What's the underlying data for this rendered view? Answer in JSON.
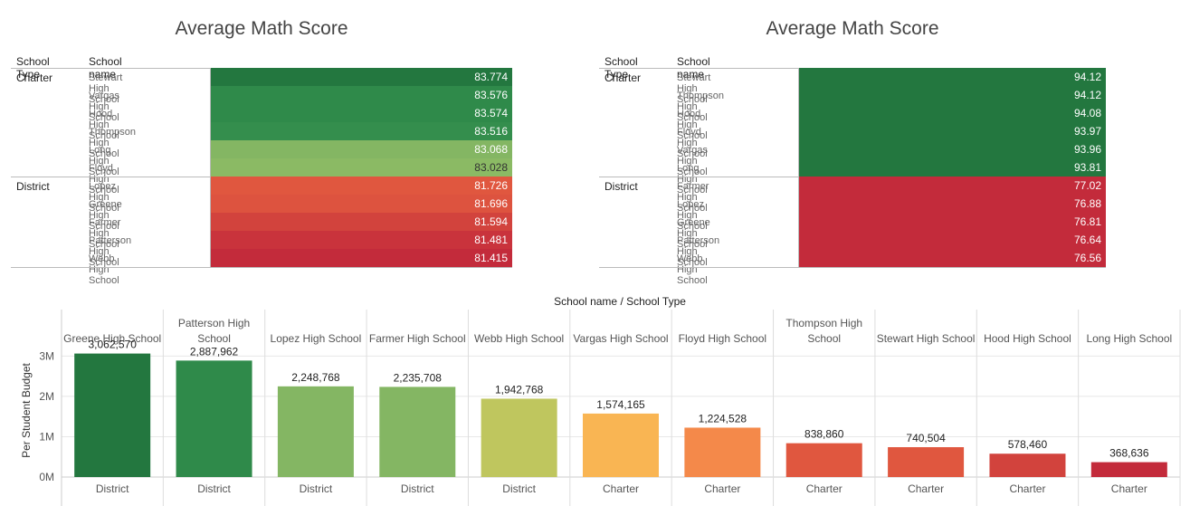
{
  "chart_data": [
    {
      "type": "table",
      "title": "Average Math Score",
      "column_headers": [
        "School Type",
        "School name"
      ],
      "groups": [
        {
          "type": "Charter",
          "rows": [
            {
              "name": "Stewart High School",
              "value": "83.774",
              "color": "#23773F",
              "text_color": "#ffffff"
            },
            {
              "name": "Vargas High School",
              "value": "83.576",
              "color": "#2F8A4A",
              "text_color": "#ffffff"
            },
            {
              "name": "Hood High School",
              "value": "83.574",
              "color": "#2F8A4A",
              "text_color": "#ffffff"
            },
            {
              "name": "Thompson High School",
              "value": "83.516",
              "color": "#348E4D",
              "text_color": "#ffffff"
            },
            {
              "name": "Long High School",
              "value": "83.068",
              "color": "#84B663",
              "text_color": "#ffffff"
            },
            {
              "name": "Floyd High School",
              "value": "83.028",
              "color": "#8BBA64",
              "text_color": "#333333"
            }
          ]
        },
        {
          "type": "District",
          "rows": [
            {
              "name": "Lopez High School",
              "value": "81.726",
              "color": "#E0573F",
              "text_color": "#ffffff"
            },
            {
              "name": "Greene High School",
              "value": "81.696",
              "color": "#DD533F",
              "text_color": "#ffffff"
            },
            {
              "name": "Farmer High School",
              "value": "81.594",
              "color": "#D2433D",
              "text_color": "#ffffff"
            },
            {
              "name": "Patterson High School",
              "value": "81.481",
              "color": "#C9333C",
              "text_color": "#ffffff"
            },
            {
              "name": "Webb High School",
              "value": "81.415",
              "color": "#C32B3B",
              "text_color": "#ffffff"
            }
          ]
        }
      ]
    },
    {
      "type": "table",
      "title": "Average Math Score",
      "column_headers": [
        "School Type",
        "School name"
      ],
      "groups": [
        {
          "type": "Charter",
          "rows": [
            {
              "name": "Stewart High School",
              "value": "94.12",
              "color": "#23773F",
              "text_color": "#ffffff"
            },
            {
              "name": "Thompson High School",
              "value": "94.12",
              "color": "#23773F",
              "text_color": "#ffffff"
            },
            {
              "name": "Hood High School",
              "value": "94.08",
              "color": "#23773F",
              "text_color": "#ffffff"
            },
            {
              "name": "Floyd High School",
              "value": "93.97",
              "color": "#23773F",
              "text_color": "#ffffff"
            },
            {
              "name": "Vargas High School",
              "value": "93.96",
              "color": "#23773F",
              "text_color": "#ffffff"
            },
            {
              "name": "Long High School",
              "value": "93.81",
              "color": "#23773F",
              "text_color": "#ffffff"
            }
          ]
        },
        {
          "type": "District",
          "rows": [
            {
              "name": "Farmer High School",
              "value": "77.02",
              "color": "#C32B3B",
              "text_color": "#ffffff"
            },
            {
              "name": "Lopez High School",
              "value": "76.88",
              "color": "#C32B3B",
              "text_color": "#ffffff"
            },
            {
              "name": "Greene High School",
              "value": "76.81",
              "color": "#C32B3B",
              "text_color": "#ffffff"
            },
            {
              "name": "Patterson High School",
              "value": "76.64",
              "color": "#C32B3B",
              "text_color": "#ffffff"
            },
            {
              "name": "Webb High School",
              "value": "76.56",
              "color": "#C32B3B",
              "text_color": "#ffffff"
            }
          ]
        }
      ]
    },
    {
      "type": "bar",
      "header": "School name / School Type",
      "ylabel": "Per Student Budget",
      "ylim": [
        0,
        3300000
      ],
      "yticks": [
        {
          "value": 0,
          "label": "0M"
        },
        {
          "value": 1000000,
          "label": "1M"
        },
        {
          "value": 2000000,
          "label": "2M"
        },
        {
          "value": 3000000,
          "label": "3M"
        }
      ],
      "grid": true,
      "bars": [
        {
          "school": "Greene High School",
          "type": "District",
          "value": 3062570,
          "label": "3,062,570",
          "color": "#23773F"
        },
        {
          "school": "Patterson High School",
          "type": "District",
          "value": 2887962,
          "label": "2,887,962",
          "color": "#2F8A4A"
        },
        {
          "school": "Lopez High School",
          "type": "District",
          "value": 2248768,
          "label": "2,248,768",
          "color": "#84B663"
        },
        {
          "school": "Farmer High School",
          "type": "District",
          "value": 2235708,
          "label": "2,235,708",
          "color": "#84B663"
        },
        {
          "school": "Webb High School",
          "type": "District",
          "value": 1942768,
          "label": "1,942,768",
          "color": "#BFC65E"
        },
        {
          "school": "Vargas High School",
          "type": "Charter",
          "value": 1574165,
          "label": "1,574,165",
          "color": "#F9B553"
        },
        {
          "school": "Floyd High School",
          "type": "Charter",
          "value": 1224528,
          "label": "1,224,528",
          "color": "#F4894A"
        },
        {
          "school": "Thompson High School",
          "type": "Charter",
          "value": 838860,
          "label": "838,860",
          "color": "#E0573F"
        },
        {
          "school": "Stewart High School",
          "type": "Charter",
          "value": 740504,
          "label": "740,504",
          "color": "#E0573F"
        },
        {
          "school": "Hood High School",
          "type": "Charter",
          "value": 578460,
          "label": "578,460",
          "color": "#D2433D"
        },
        {
          "school": "Long High School",
          "type": "Charter",
          "value": 368636,
          "label": "368,636",
          "color": "#C32B3B"
        }
      ]
    }
  ]
}
